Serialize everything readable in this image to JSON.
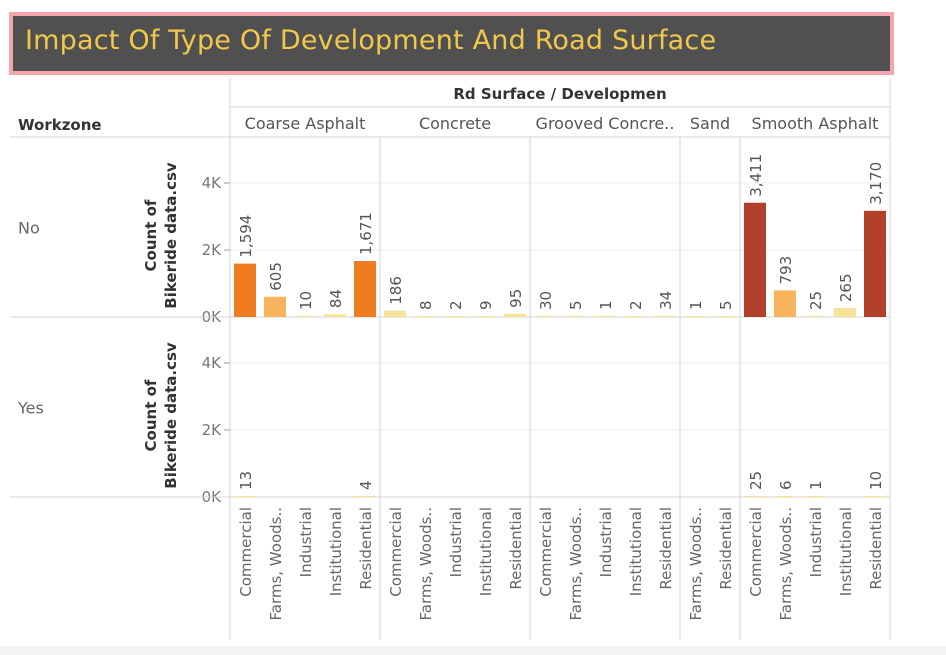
{
  "title": "Impact Of Type Of Development And Road Surface",
  "colors": {
    "title_bg": "#505050",
    "title_border": "#f3a6ab",
    "title_text": "#f2c84b",
    "scale": [
      "#f7e29a",
      "#f7b45d",
      "#f07c22",
      "#b2402a"
    ]
  },
  "chart_data": {
    "type": "bar",
    "column_header": "Rd Surface / Developmen",
    "row_header": "Workzone",
    "ylabel": "Count of Bikeride data.csv",
    "yticks": [
      "0K",
      "2K",
      "4K"
    ],
    "ylim": [
      0,
      5500
    ],
    "grid": true,
    "rows": [
      "No",
      "Yes"
    ],
    "surfaces": [
      {
        "name": "Coarse Asphalt",
        "categories": [
          "Commercial",
          "Farms, Woods..",
          "Industrial",
          "Institutional",
          "Residential"
        ],
        "no": [
          1594,
          605,
          10,
          84,
          1671
        ],
        "yes": [
          13,
          null,
          null,
          null,
          4
        ]
      },
      {
        "name": "Concrete",
        "categories": [
          "Commercial",
          "Farms, Woods..",
          "Industrial",
          "Institutional",
          "Residential"
        ],
        "no": [
          186,
          8,
          2,
          9,
          95
        ],
        "yes": [
          null,
          null,
          null,
          null,
          null
        ]
      },
      {
        "name": "Grooved Concre..",
        "categories": [
          "Commercial",
          "Farms, Woods..",
          "Industrial",
          "Institutional",
          "Residential"
        ],
        "no": [
          30,
          5,
          1,
          2,
          34
        ],
        "yes": [
          null,
          null,
          null,
          null,
          null
        ]
      },
      {
        "name": "Sand",
        "categories": [
          "Farms, Woods..",
          "Residential"
        ],
        "no": [
          1,
          5
        ],
        "yes": [
          null,
          null
        ]
      },
      {
        "name": "Smooth Asphalt",
        "categories": [
          "Commercial",
          "Farms, Woods..",
          "Industrial",
          "Institutional",
          "Residential"
        ],
        "no": [
          3411,
          793,
          25,
          265,
          3170
        ],
        "yes": [
          25,
          6,
          1,
          null,
          10
        ]
      }
    ]
  }
}
